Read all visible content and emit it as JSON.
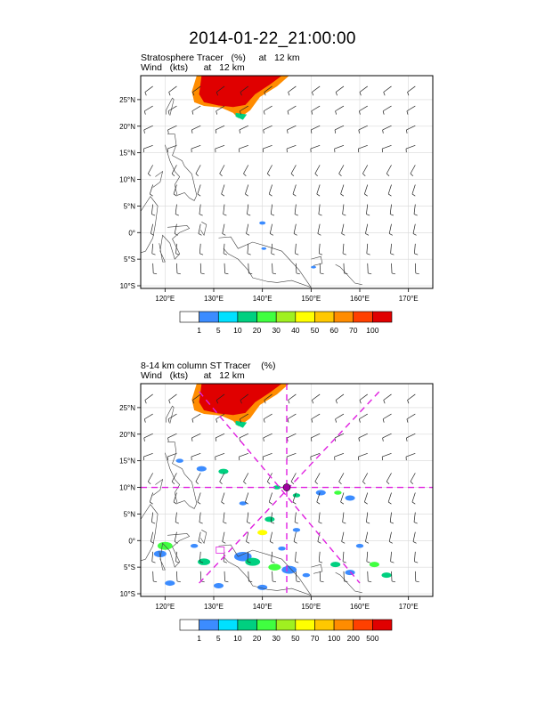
{
  "title": "2014-01-22_21:00:00",
  "panels": [
    {
      "line1": "Stratosphere Tracer   (%)     at   12 km",
      "line2": "Wind   (kts)      at   12 km",
      "colorbar_labels": [
        "1",
        "5",
        "10",
        "20",
        "30",
        "40",
        "50",
        "60",
        "70",
        "100"
      ],
      "colorbar_colors": [
        "#ffffff",
        "#3c8cff",
        "#00e0ff",
        "#00d080",
        "#40ff40",
        "#a0f020",
        "#ffff00",
        "#ffc800",
        "#ff8c00",
        "#ff4000",
        "#e00000"
      ],
      "show_cross": false
    },
    {
      "line1": "8-14 km column ST Tracer    (%)",
      "line2": "Wind   (kts)      at   12 km",
      "colorbar_labels": [
        "1",
        "5",
        "10",
        "20",
        "30",
        "50",
        "70",
        "100",
        "200",
        "500"
      ],
      "colorbar_colors": [
        "#ffffff",
        "#3c8cff",
        "#00e0ff",
        "#00d080",
        "#40ff40",
        "#a0f020",
        "#ffff00",
        "#ffc800",
        "#ff8c00",
        "#ff4000",
        "#e00000"
      ],
      "show_cross": true
    }
  ],
  "axes": {
    "lon_labels": [
      "120°E",
      "130°E",
      "140°E",
      "150°E",
      "160°E",
      "170°E"
    ],
    "lat_labels": [
      "25°N",
      "20°N",
      "15°N",
      "10°N",
      "5°N",
      "0°",
      "5°S",
      "10°S"
    ]
  },
  "colors": {
    "fill_red": "#e00000",
    "cross_magenta": "#e020e0",
    "coast": "#404040"
  }
}
